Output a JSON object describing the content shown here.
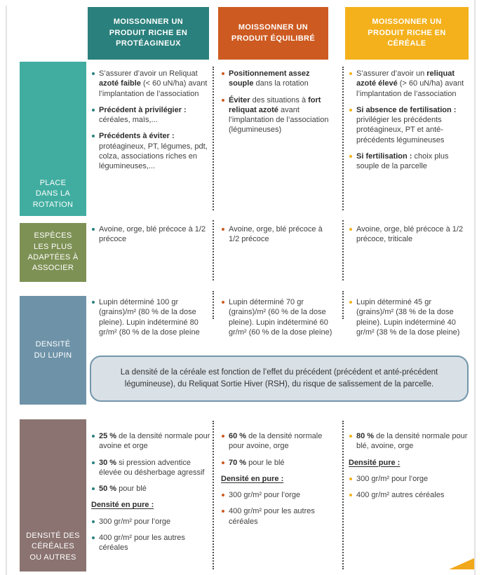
{
  "columns": [
    {
      "id": "proteagineux",
      "label": "MOISSONNER UN\nPRODUIT RICHE EN\nPROTÉAGINEUX",
      "color": "#2a807c"
    },
    {
      "id": "equilibre",
      "label": "MOISSONNER UN\nPRODUIT ÉQUILIBRÉ",
      "color": "#cd5a20"
    },
    {
      "id": "cereale",
      "label": "MOISSONNER UN\nPRODUIT RICHE EN\nCÉRÉALE",
      "color": "#f4b11c"
    }
  ],
  "rows": [
    {
      "id": "place-rotation",
      "label": "PLACE\nDANS LA\nROTATION",
      "color": "#41ada0",
      "cells": [
        [
          {
            "type": "bullet",
            "segments": [
              [
                "S’assurer d’avoir un Reliquat ",
                0
              ],
              [
                "azoté faible",
                1
              ],
              [
                " (< 60 uN/ha) avant l’implantation de l’association",
                0
              ]
            ]
          },
          {
            "type": "bullet",
            "segments": [
              [
                "Précédent à privilégier :",
                1
              ],
              [
                " céréales, maïs,...",
                0
              ]
            ]
          },
          {
            "type": "bullet",
            "segments": [
              [
                "Précédents à éviter :",
                1
              ],
              [
                " protéagineux, PT, légumes, pdt, colza, associations riches en légumineuses,...",
                0
              ]
            ]
          }
        ],
        [
          {
            "type": "bullet",
            "segments": [
              [
                "Positionnement assez souple",
                1
              ],
              [
                " dans la rotation",
                0
              ]
            ]
          },
          {
            "type": "bullet",
            "segments": [
              [
                "Éviter",
                1
              ],
              [
                " des situations à ",
                0
              ],
              [
                "fort reliquat azoté",
                1
              ],
              [
                " avant l’implantation de l’association (légumineuses)",
                0
              ]
            ]
          }
        ],
        [
          {
            "type": "bullet",
            "segments": [
              [
                "S’assurer d’avoir un ",
                0
              ],
              [
                "reliquat azoté élevé",
                1
              ],
              [
                " (> 60 uN/ha) avant l’implantation de l’association",
                0
              ]
            ]
          },
          {
            "type": "bullet",
            "segments": [
              [
                "Si absence de fertilisation :",
                1
              ],
              [
                " privilégier les précédents protéagineux, PT et anté-précédents légumineuses",
                0
              ]
            ]
          },
          {
            "type": "bullet",
            "segments": [
              [
                "Si fertilisation :",
                1
              ],
              [
                " choix plus souple de la parcelle",
                0
              ]
            ]
          }
        ]
      ]
    },
    {
      "id": "especes",
      "label": "ESPÈCES\nLES PLUS\nADAPTÉES À\nASSOCIER",
      "color": "#7e9155",
      "cells": [
        [
          {
            "type": "bullet",
            "segments": [
              [
                "Avoine, orge, blé précoce à 1/2 précoce",
                0
              ]
            ]
          }
        ],
        [
          {
            "type": "bullet",
            "segments": [
              [
                "Avoine, orge, blé précoce à 1/2 précoce",
                0
              ]
            ]
          }
        ],
        [
          {
            "type": "bullet",
            "segments": [
              [
                "Avoine, orge, blé précoce à 1/2 précoce, triticale",
                0
              ]
            ]
          }
        ]
      ]
    },
    {
      "id": "densite-lupin",
      "label": "DENSITÉ\nDU LUPIN",
      "color": "#6e93a8",
      "cells": [
        [
          {
            "type": "bullet",
            "segments": [
              [
                "Lupin déterminé 100 gr (grains)/m² (80 % de la dose pleine). Lupin indéterminé 80 gr/m² (80 % de la dose pleine",
                0
              ]
            ]
          }
        ],
        [
          {
            "type": "bullet",
            "segments": [
              [
                "Lupin déterminé 70 gr (grains)/m² (60 % de la dose pleine). Lupin indéterminé 60 gr/m² (60 % de la dose pleine)",
                0
              ]
            ]
          }
        ],
        [
          {
            "type": "bullet",
            "segments": [
              [
                "Lupin déterminé 45 gr (grains)/m² (38 % de la dose pleine). Lupin indéterminé 40 gr/m² (38 % de la dose pleine)",
                0
              ]
            ]
          }
        ]
      ]
    },
    {
      "id": "densite-cereales",
      "label": "DENSITÉ DES\nCÉRÉALES\nOU AUTRES",
      "color": "#8a7370",
      "cells": [
        [
          {
            "type": "bullet",
            "segments": [
              [
                "25 %",
                1
              ],
              [
                " de la densité normale pour avoine et orge",
                0
              ]
            ]
          },
          {
            "type": "bullet",
            "segments": [
              [
                "30 %",
                1
              ],
              [
                " si pression adventice élevée ou désherbage agressif",
                0
              ]
            ]
          },
          {
            "type": "bullet",
            "segments": [
              [
                "50 %",
                1
              ],
              [
                " pour blé",
                0
              ]
            ]
          },
          {
            "type": "heading",
            "segments": [
              [
                "Densité en pure :",
                1
              ]
            ]
          },
          {
            "type": "bullet",
            "segments": [
              [
                "300 gr/m² pour l’orge",
                0
              ]
            ]
          },
          {
            "type": "bullet",
            "segments": [
              [
                "400 gr/m² pour les autres céréales",
                0
              ]
            ]
          }
        ],
        [
          {
            "type": "bullet",
            "segments": [
              [
                "60 %",
                1
              ],
              [
                " de la densité normale pour avoine, orge",
                0
              ]
            ]
          },
          {
            "type": "bullet",
            "segments": [
              [
                "70 %",
                1
              ],
              [
                " pour le blé",
                0
              ]
            ]
          },
          {
            "type": "heading",
            "segments": [
              [
                "Densité en pure :",
                1
              ]
            ]
          },
          {
            "type": "bullet",
            "segments": [
              [
                "300 gr/m² pour l’orge",
                0
              ]
            ]
          },
          {
            "type": "bullet",
            "segments": [
              [
                "400 gr/m² pour les autres céréales",
                0
              ]
            ]
          }
        ],
        [
          {
            "type": "bullet",
            "segments": [
              [
                "80 %",
                1
              ],
              [
                " de la densité normale pour blé, avoine, orge",
                0
              ]
            ]
          },
          {
            "type": "heading",
            "segments": [
              [
                "Densité pure :",
                1
              ]
            ]
          },
          {
            "type": "bullet",
            "segments": [
              [
                "300 gr/m² pour l’orge",
                0
              ]
            ]
          },
          {
            "type": "bullet",
            "segments": [
              [
                "400 gr/m² autres céréales",
                0
              ]
            ]
          }
        ]
      ]
    }
  ],
  "callout": {
    "text": "La densité de la céréale est fonction de l’effet du précédent (précédent et anté-précédent légumineuse), du Reliquat Sortie Hiver (RSH), du risque de salissement de la parcelle.",
    "fill": "#d9e0e6",
    "border": "#7396ab"
  },
  "decor": {
    "corner_triangle_color": "#f2a81c",
    "edge_line_color": "#e3e3e3",
    "separator_color": "#4f4f4f"
  }
}
